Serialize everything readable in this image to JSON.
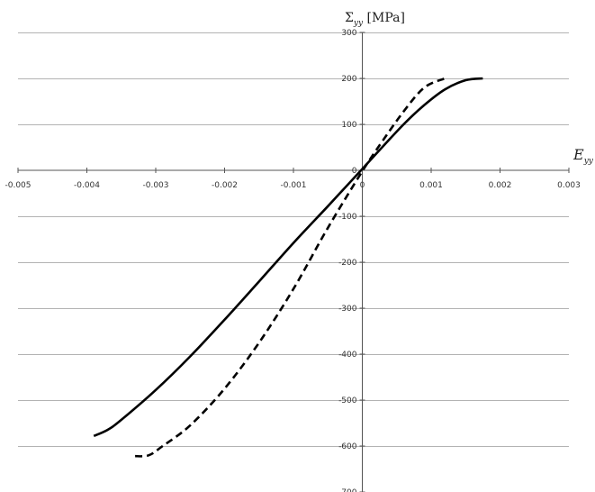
{
  "chart_data": {
    "type": "line",
    "ylabel_main": "Σ",
    "ylabel_sub": "yy",
    "ylabel_unit": " [MPa]",
    "xlabel_main": "E",
    "xlabel_sub": "yy",
    "xlim": [
      -0.005,
      0.003
    ],
    "ylim": [
      -700,
      300
    ],
    "x_ticks": [
      -0.005,
      -0.004,
      -0.003,
      -0.002,
      -0.001,
      0,
      0.001,
      0.002,
      0.003
    ],
    "x_tick_labels": [
      "-0.005",
      "-0.004",
      "-0.003",
      "-0.002",
      "-0.001",
      "0",
      "0.001",
      "0.002",
      "0.003"
    ],
    "y_ticks": [
      300,
      200,
      100,
      0,
      -100,
      -200,
      -300,
      -400,
      -500,
      -600,
      -700
    ],
    "y_tick_labels": [
      "300",
      "200",
      "100",
      "0",
      "-100",
      "-200",
      "-300",
      "-400",
      "-500",
      "-600",
      "-700"
    ],
    "grid": "horizontal",
    "series": [
      {
        "style": "solid",
        "color": "#000000",
        "x": [
          -0.0039,
          -0.0037,
          -0.0035,
          -0.003,
          -0.0025,
          -0.002,
          -0.0015,
          -0.001,
          -0.0005,
          0,
          0.0003,
          0.0006,
          0.0009,
          0.0012,
          0.0015,
          0.00175
        ],
        "y": [
          -578,
          -565,
          -543,
          -478,
          -405,
          -325,
          -242,
          -158,
          -78,
          3,
          52,
          100,
          142,
          176,
          196,
          200
        ]
      },
      {
        "style": "dashed",
        "color": "#000000",
        "x": [
          -0.0033,
          -0.0031,
          -0.0029,
          -0.0025,
          -0.002,
          -0.0015,
          -0.001,
          -0.0005,
          0,
          0.0003,
          0.0006,
          0.0009,
          0.0012
        ],
        "y": [
          -622,
          -620,
          -600,
          -555,
          -475,
          -375,
          -258,
          -125,
          -2,
          65,
          128,
          180,
          200
        ]
      }
    ]
  }
}
